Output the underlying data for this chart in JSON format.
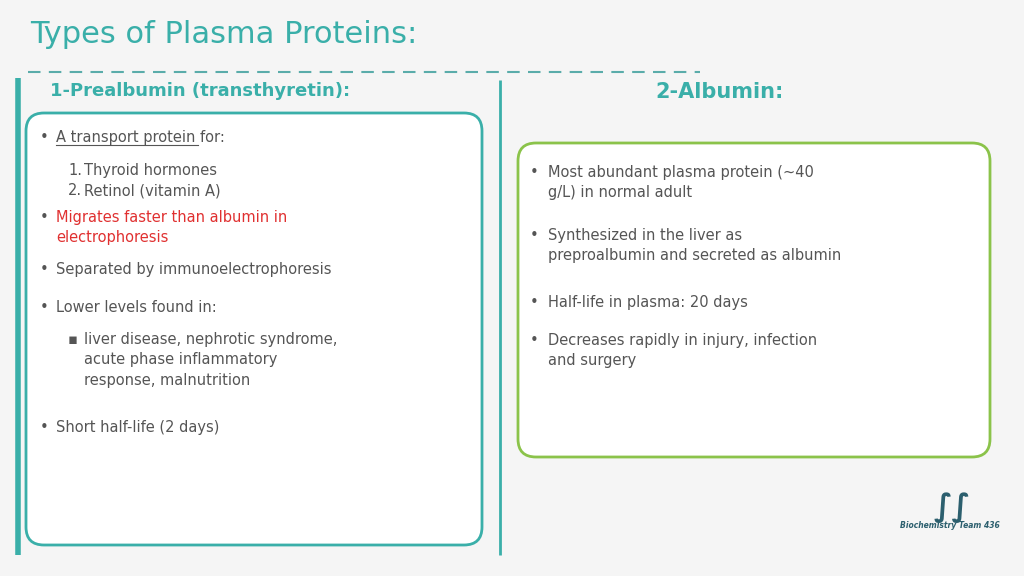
{
  "title": "Types of Plasma Proteins:",
  "title_color": "#3aafa9",
  "title_fontsize": 22,
  "bg_color": "#f5f5f5",
  "divider_color": "#5aacaa",
  "left_bar_color": "#3aafa9",
  "section1_heading": "1-Prealbumin (transthyretin):",
  "section1_heading_color": "#3aafa9",
  "section1_heading_fontsize": 13,
  "section1_box_color": "#3aafa9",
  "section2_heading": "2-Albumin:",
  "section2_heading_color": "#3aafa9",
  "section2_heading_fontsize": 15,
  "section2_box_color": "#8bc34a",
  "text_color": "#555555",
  "red_color": "#e03030",
  "logo_text": "Biochemistry Team 436",
  "logo_color": "#2c5f6e"
}
